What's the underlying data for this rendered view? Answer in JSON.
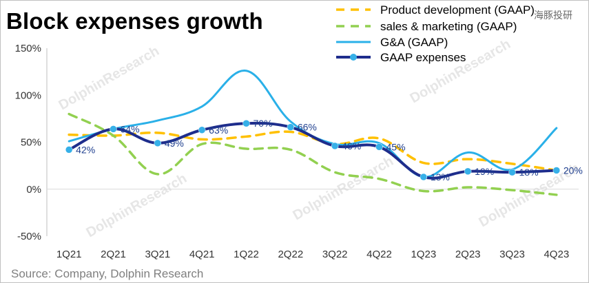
{
  "title": "Block expenses growth",
  "source": "Source: Company, Dolphin Research",
  "watermark_cn": "海豚投研",
  "watermark_en": "DolphinResearch",
  "chart_data": {
    "type": "line",
    "categories": [
      "1Q21",
      "2Q21",
      "3Q21",
      "4Q21",
      "1Q22",
      "2Q22",
      "3Q22",
      "4Q22",
      "1Q23",
      "2Q23",
      "3Q23",
      "4Q23"
    ],
    "y_ticks": [
      "150%",
      "100%",
      "50%",
      "0%",
      "-50%"
    ],
    "ylim": [
      -50,
      150
    ],
    "grid": false,
    "legend_position": "top-right",
    "series": [
      {
        "name": "Product development (GAAP)",
        "style": "dashed",
        "color": "#ffc000",
        "values": [
          58,
          57,
          60,
          53,
          56,
          61,
          48,
          54,
          28,
          32,
          27,
          20
        ]
      },
      {
        "name": "sales & marketing (GAAP)",
        "style": "dashed",
        "color": "#92d050",
        "values": [
          80,
          57,
          16,
          48,
          43,
          42,
          18,
          11,
          -2,
          2,
          -1,
          -6
        ]
      },
      {
        "name": "G&A (GAAP)",
        "style": "solid",
        "color": "#2ab0e8",
        "values": [
          51,
          64,
          73,
          88,
          126,
          72,
          48,
          49,
          13,
          39,
          21,
          65
        ]
      },
      {
        "name": "GAAP expenses",
        "style": "solid-markers",
        "color": "#1e2d8c",
        "marker_color": "#36b0e8",
        "values": [
          42,
          64,
          49,
          63,
          70,
          66,
          46,
          45,
          13,
          19,
          18,
          20
        ],
        "data_labels": [
          "42%",
          "64%",
          "49%",
          "63%",
          "70%",
          "66%",
          "46%",
          "45%",
          "13%",
          "19%",
          "18%",
          "20%"
        ]
      }
    ]
  }
}
